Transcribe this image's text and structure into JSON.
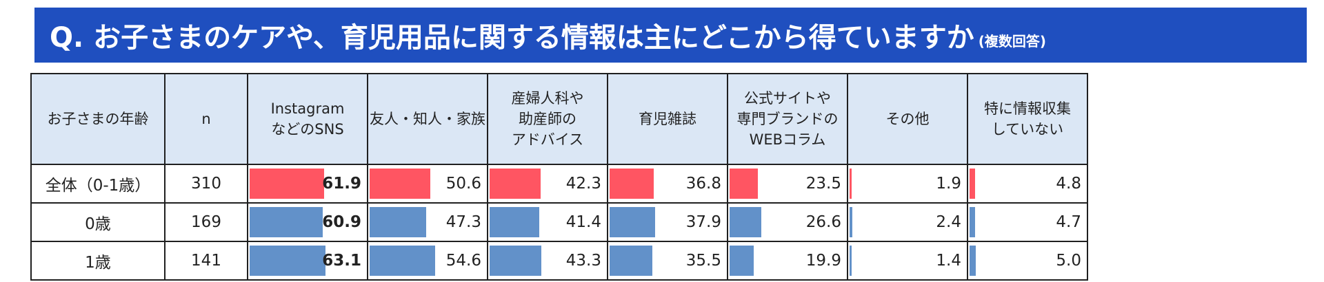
{
  "header": {
    "question": "Q. お子さまのケアや、育児用品に関する情報は主にどこから得ていますか",
    "note": "(複数回答)"
  },
  "colors": {
    "banner": "#1f4fbf",
    "header_bg": "#dbe7f5",
    "total_bar": "#ff5562",
    "segment_bar": "#6291c9"
  },
  "table": {
    "col_headers": {
      "age": "お子さまの年齢",
      "n": "n",
      "c0_l1": "Instagram",
      "c0_l2": "などのSNS",
      "c1_l1": "友人・知人・家族",
      "c2_l1": "産婦人科や",
      "c2_l2": "助産師の",
      "c2_l3": "アドバイス",
      "c3_l1": "育児雑誌",
      "c4_l1": "公式サイトや",
      "c4_l2": "専門ブランドの",
      "c4_l3": "WEBコラム",
      "c5_l1": "その他",
      "c6_l1": "特に情報収集",
      "c6_l2": "していない"
    },
    "rows": [
      {
        "age": "全体（0-1歳）",
        "n": "310"
      },
      {
        "age": "0歳",
        "n": "169"
      },
      {
        "age": "1歳",
        "n": "141"
      }
    ],
    "highlight_column": 0
  },
  "chart_data": {
    "type": "table",
    "unit": "%",
    "categories": [
      "Instagram などのSNS",
      "友人・知人・家族",
      "産婦人科や助産師のアドバイス",
      "育児雑誌",
      "公式サイトや専門ブランドのWEBコラム",
      "その他",
      "特に情報収集していない"
    ],
    "series": [
      {
        "name": "全体（0-1歳）",
        "n": 310,
        "values": [
          61.9,
          50.6,
          42.3,
          36.8,
          23.5,
          1.9,
          4.8
        ]
      },
      {
        "name": "0歳",
        "n": 169,
        "values": [
          60.9,
          47.3,
          41.4,
          37.9,
          26.6,
          2.4,
          4.7
        ]
      },
      {
        "name": "1歳",
        "n": 141,
        "values": [
          63.1,
          54.6,
          43.3,
          35.5,
          19.9,
          1.4,
          5.0
        ]
      }
    ],
    "bar_scale_max": 100
  }
}
